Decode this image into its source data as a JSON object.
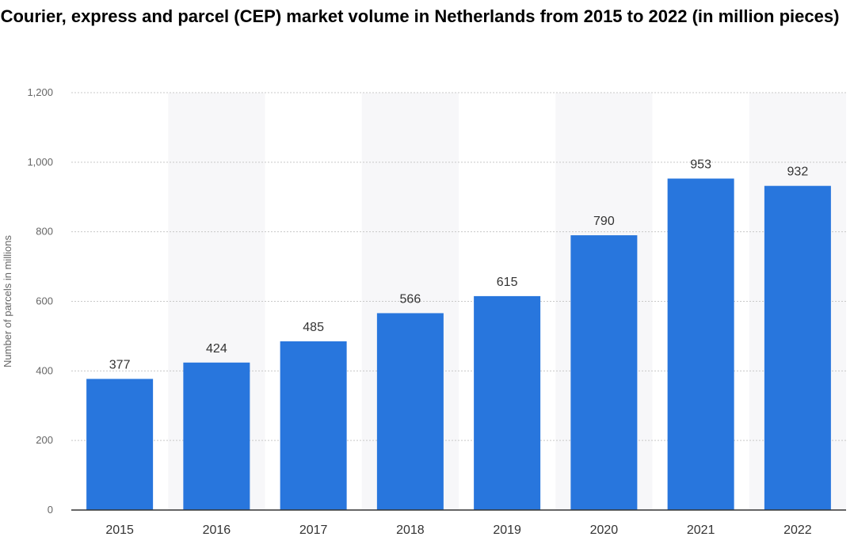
{
  "chart_data": {
    "type": "bar",
    "title": "Courier, express and parcel (CEP) market volume in Netherlands from 2015 to 2022 (in million pieces)",
    "xlabel": "",
    "ylabel": "Number of parcels in millions",
    "categories": [
      "2015",
      "2016",
      "2017",
      "2018",
      "2019",
      "2020",
      "2021",
      "2022"
    ],
    "values": [
      377,
      424,
      485,
      566,
      615,
      790,
      953,
      932
    ],
    "data_labels": [
      "377",
      "424",
      "485",
      "566",
      "615",
      "790",
      "953",
      "932"
    ],
    "ylim": [
      0,
      1200
    ],
    "yticks": [
      0,
      200,
      400,
      600,
      800,
      1000,
      1200
    ],
    "ytick_labels": [
      "0",
      "200",
      "400",
      "600",
      "800",
      "1,000",
      "1,200"
    ],
    "grid": true,
    "legend": "none",
    "colors": {
      "bar": "#2876dd",
      "band": "#f7f7f9",
      "grid": "#c8c8c8",
      "axis": "#333333"
    }
  }
}
